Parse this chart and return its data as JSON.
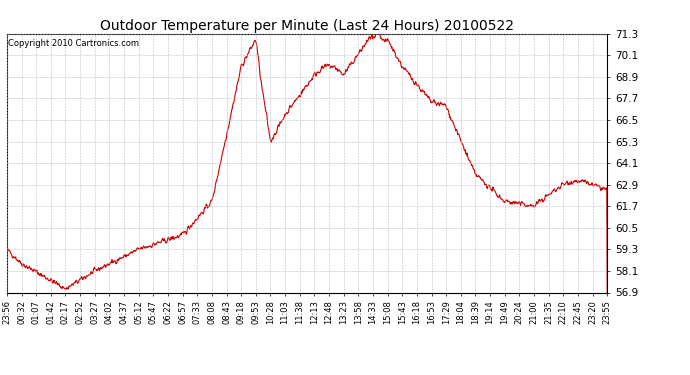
{
  "title": "Outdoor Temperature per Minute (Last 24 Hours) 20100522",
  "copyright_text": "Copyright 2010 Cartronics.com",
  "line_color": "#cc0000",
  "background_color": "#ffffff",
  "plot_bg_color": "#ffffff",
  "grid_color": "#bbbbbb",
  "ylim": [
    56.9,
    71.3
  ],
  "yticks": [
    56.9,
    58.1,
    59.3,
    60.5,
    61.7,
    62.9,
    64.1,
    65.3,
    66.5,
    67.7,
    68.9,
    70.1,
    71.3
  ],
  "xtick_labels": [
    "23:56",
    "00:32",
    "01:07",
    "01:42",
    "02:17",
    "02:52",
    "03:27",
    "04:02",
    "04:37",
    "05:12",
    "05:47",
    "06:22",
    "06:57",
    "07:33",
    "08:08",
    "08:43",
    "09:18",
    "09:53",
    "10:28",
    "11:03",
    "11:38",
    "12:13",
    "12:48",
    "13:23",
    "13:58",
    "14:33",
    "15:08",
    "15:43",
    "16:18",
    "16:53",
    "17:29",
    "18:04",
    "18:39",
    "19:14",
    "19:49",
    "20:24",
    "21:00",
    "21:35",
    "22:10",
    "22:45",
    "23:20",
    "23:55"
  ],
  "line_width": 0.8
}
